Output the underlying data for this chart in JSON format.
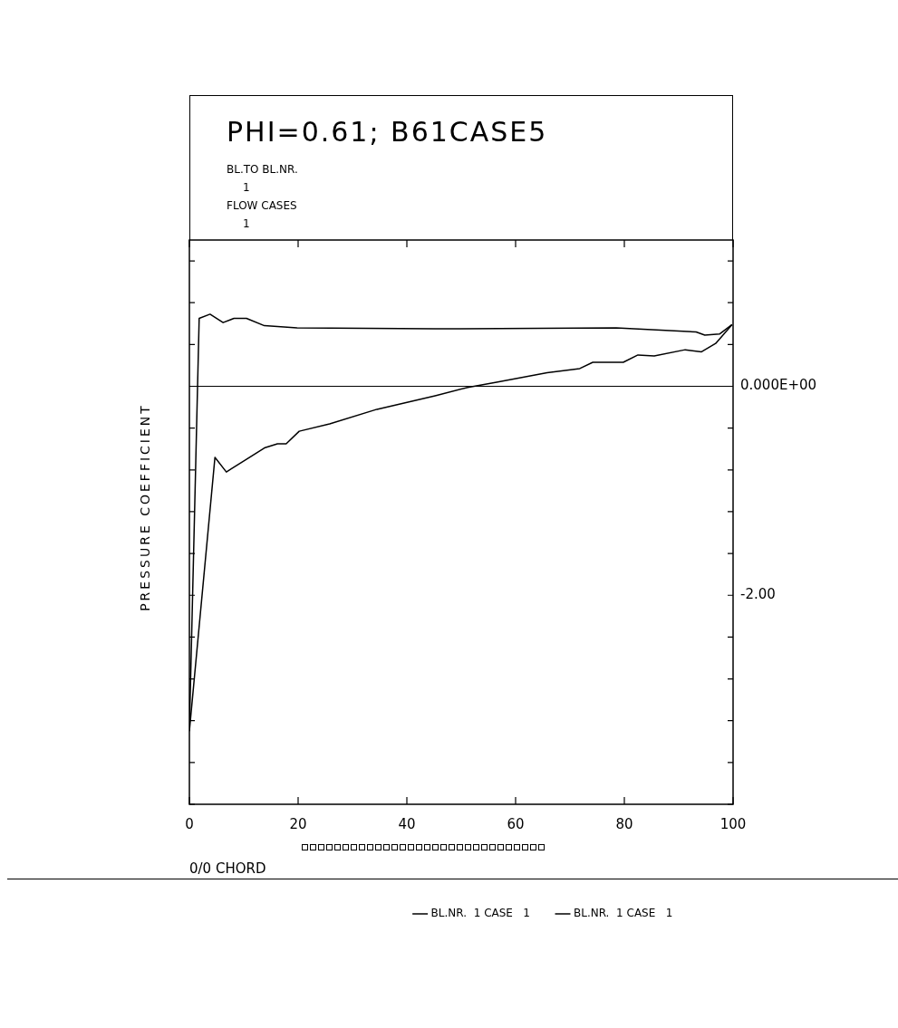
{
  "chart_data": {
    "type": "line",
    "title": "PHI=0.61; B61CASE5",
    "xlabel": "0/0 CHORD",
    "ylabel": "PRESSURE COEFFICIENT",
    "annotations": [
      "BL.TO BL.NR.",
      "1",
      "FLOW CASES",
      "1"
    ],
    "xlim": [
      0,
      100
    ],
    "xticks": [
      0,
      20,
      40,
      60,
      80,
      100
    ],
    "ylim": [
      -4,
      1.4
    ],
    "yticks": [
      {
        "value": -4,
        "label": null
      },
      {
        "value": -3.6,
        "label": null
      },
      {
        "value": -3.2,
        "label": null
      },
      {
        "value": -2.8,
        "label": null
      },
      {
        "value": -2.4,
        "label": null
      },
      {
        "value": -2,
        "label": "-2.00"
      },
      {
        "value": -1.6,
        "label": null
      },
      {
        "value": -1.2,
        "label": null
      },
      {
        "value": -0.8,
        "label": null
      },
      {
        "value": -0.4,
        "label": null
      },
      {
        "value": 0,
        "label": "0.000E+00"
      },
      {
        "value": 0.4,
        "label": null
      },
      {
        "value": 0.8,
        "label": null
      },
      {
        "value": 1.2,
        "label": null
      }
    ],
    "grid": false,
    "legend": "bottom",
    "marker": "none",
    "line_style": "solid",
    "ref_lines": [
      {
        "axis": "y",
        "value": 0,
        "color": "#000000"
      }
    ],
    "series": [
      {
        "name": "BL.NR.  1 CASE   1",
        "color": "#000000",
        "x": [
          0,
          1.8,
          3.8,
          6.2,
          8.2,
          10.5,
          13.8,
          19.8,
          45.2,
          78.5,
          93.2,
          94.8,
          97.5,
          99.8
        ],
        "values": [
          -3.3,
          0.65,
          0.69,
          0.61,
          0.65,
          0.65,
          0.58,
          0.56,
          0.55,
          0.56,
          0.52,
          0.49,
          0.5,
          0.59
        ]
      },
      {
        "name": "BL.NR.  1 CASE   1",
        "color": "#000000",
        "x": [
          0,
          4.7,
          6.8,
          13.8,
          16.2,
          17.8,
          20.2,
          25.8,
          34.5,
          45.2,
          51.2,
          56.5,
          65.8,
          71.8,
          74.2,
          79.8,
          82.5,
          85.5,
          91.2,
          94.2,
          96.8,
          99.8
        ],
        "values": [
          -3.3,
          -0.68,
          -0.82,
          -0.59,
          -0.55,
          -0.55,
          -0.43,
          -0.36,
          -0.22,
          -0.09,
          -0.01,
          0.04,
          0.13,
          0.17,
          0.23,
          0.23,
          0.3,
          0.29,
          0.35,
          0.33,
          0.41,
          0.59
        ]
      }
    ]
  }
}
